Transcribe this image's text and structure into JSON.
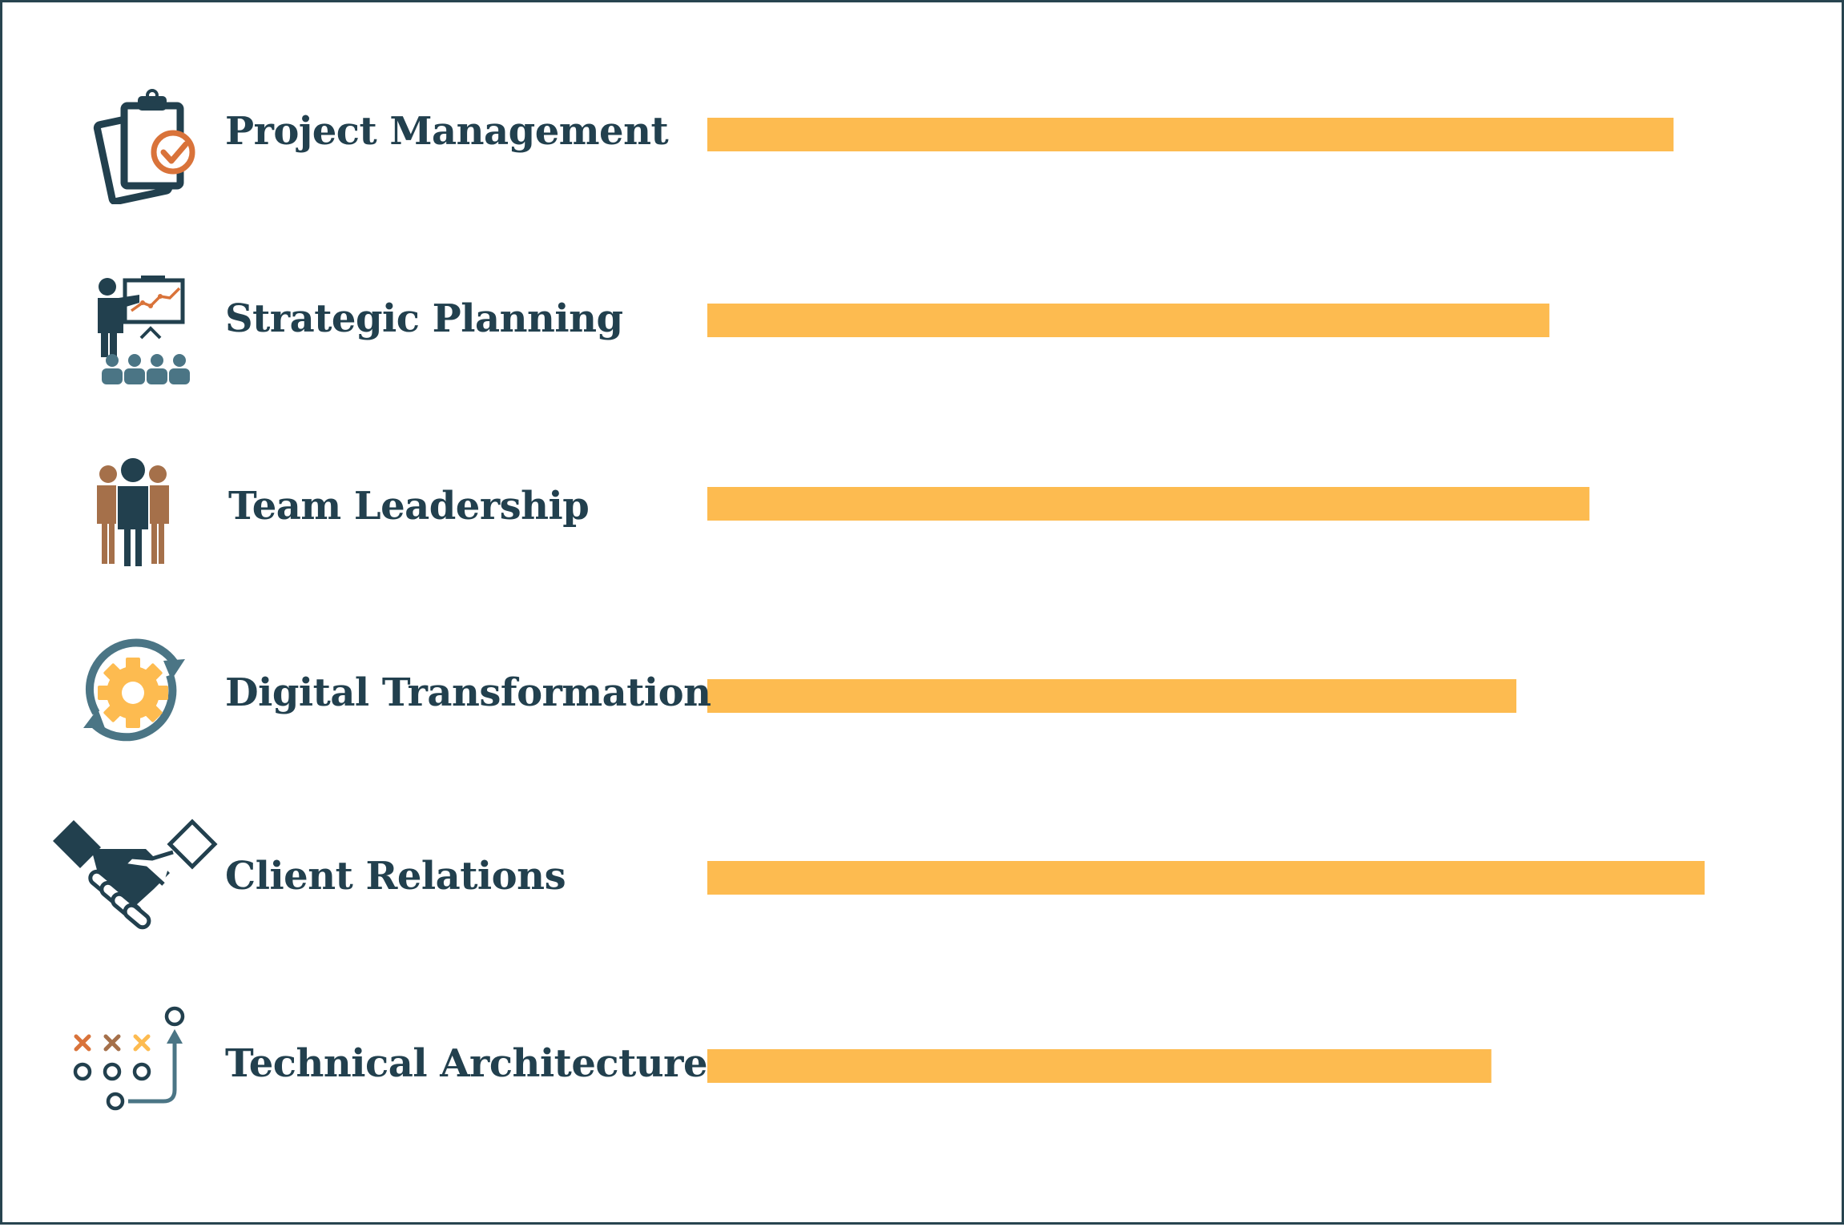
{
  "colors": {
    "bar": "#fdbb50",
    "text": "#22404e",
    "icon_dark": "#22404e",
    "icon_teal": "#4b7585",
    "icon_orange": "#d9733a",
    "icon_brown": "#a5704a",
    "icon_yellow": "#fdbb50",
    "border": "#28444f"
  },
  "chart_data": {
    "type": "bar",
    "orientation": "horizontal",
    "title": "",
    "xlabel": "",
    "ylabel": "",
    "value_scale": "relative 0-100 (no axis shown)",
    "xlim": [
      0,
      100
    ],
    "grid": false,
    "legend": "none",
    "categories": [
      "Project Management",
      "Strategic Planning",
      "Team Leadership",
      "Digital Transformation",
      "Client Relations",
      "Technical Architecture"
    ],
    "values": [
      96.5,
      84.1,
      88.1,
      80.8,
      99.6,
      78.3
    ],
    "icons": [
      "clipboard-check-icon",
      "presentation-chart-icon",
      "team-people-icon",
      "gear-cycle-icon",
      "handshake-icon",
      "strategy-play-icon"
    ]
  }
}
